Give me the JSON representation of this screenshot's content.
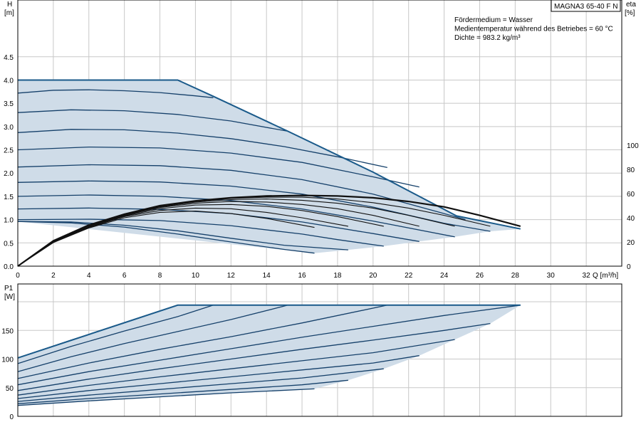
{
  "chart_data": [
    {
      "type": "line",
      "panel": "head",
      "model_label": "MAGNA3 65-40 F N",
      "info_lines": [
        "Fördermedium = Wasser",
        "Medientemperatur während des Betriebes = 60 °C",
        "Dichte = 983.2 kg/m³"
      ],
      "ylabel_lines": [
        "H",
        "[m]"
      ],
      "xlabel": "Q [m³/h]",
      "y2label_lines": [
        "eta",
        "[%]"
      ],
      "xlim": [
        0,
        34
      ],
      "ylim": [
        0,
        5.2
      ],
      "y2lim": [
        0,
        100
      ],
      "xticks": [
        0,
        2,
        4,
        6,
        8,
        10,
        12,
        14,
        16,
        18,
        20,
        22,
        24,
        26,
        28,
        30,
        32
      ],
      "yticks": [
        "0.0",
        "0.5",
        "1.0",
        "1.5",
        "2.0",
        "2.5",
        "3.0",
        "3.5",
        "4.0",
        "4.5"
      ],
      "y2ticks": [
        0,
        20,
        40,
        60,
        80,
        100
      ],
      "grid": true,
      "envelope": {
        "x": [
          0,
          9,
          11,
          15.2,
          20,
          24.7,
          28.3,
          26.6,
          24.6,
          22.6,
          20.6,
          18.6,
          16.7,
          0
        ],
        "y": [
          4.0,
          4.0,
          3.65,
          2.9,
          2.02,
          1.08,
          0.8,
          0.75,
          0.63,
          0.53,
          0.43,
          0.35,
          0.28,
          0.96
        ]
      },
      "head_series": [
        {
          "x": [
            0,
            1,
            3,
            5,
            7,
            9
          ],
          "y": [
            4.0,
            4.0,
            4.0,
            4.0,
            4.0,
            4.0
          ]
        },
        {
          "x": [
            0,
            2,
            4,
            6,
            8,
            10,
            11
          ],
          "y": [
            3.72,
            3.78,
            3.79,
            3.77,
            3.73,
            3.66,
            3.62
          ]
        },
        {
          "x": [
            0,
            3,
            6,
            9,
            12,
            15.2
          ],
          "y": [
            3.3,
            3.36,
            3.34,
            3.26,
            3.12,
            2.9
          ]
        },
        {
          "x": [
            0,
            3,
            6,
            9,
            12,
            15,
            18,
            20.8
          ],
          "y": [
            2.87,
            2.94,
            2.93,
            2.86,
            2.74,
            2.57,
            2.35,
            2.12
          ]
        },
        {
          "x": [
            0,
            4,
            8,
            12,
            16,
            20,
            22.6
          ],
          "y": [
            2.5,
            2.56,
            2.54,
            2.43,
            2.23,
            1.92,
            1.7
          ]
        },
        {
          "x": [
            0,
            4,
            8,
            12,
            16,
            20,
            24,
            25.2
          ],
          "y": [
            2.13,
            2.18,
            2.16,
            2.06,
            1.86,
            1.55,
            1.13,
            1.0
          ]
        },
        {
          "x": [
            0,
            4,
            8,
            12,
            16,
            20,
            24,
            26.6
          ],
          "y": [
            1.8,
            1.83,
            1.81,
            1.72,
            1.55,
            1.27,
            0.92,
            0.75
          ]
        },
        {
          "x": [
            0,
            4,
            8,
            12,
            16,
            20,
            24.6
          ],
          "y": [
            1.5,
            1.53,
            1.5,
            1.41,
            1.23,
            0.97,
            0.63
          ]
        },
        {
          "x": [
            0,
            4,
            8,
            12,
            16,
            20,
            22.6
          ],
          "y": [
            1.23,
            1.25,
            1.22,
            1.13,
            0.95,
            0.7,
            0.53
          ]
        },
        {
          "x": [
            0,
            4,
            8,
            12,
            16,
            18,
            20.6
          ],
          "y": [
            1.0,
            1.01,
            0.98,
            0.87,
            0.69,
            0.57,
            0.43
          ]
        },
        {
          "x": [
            0,
            3,
            6,
            9,
            12,
            15,
            18.6
          ],
          "y": [
            0.96,
            0.95,
            0.88,
            0.76,
            0.6,
            0.45,
            0.35
          ]
        },
        {
          "x": [
            0,
            3,
            6,
            9,
            12,
            15,
            16.7
          ],
          "y": [
            0.96,
            0.93,
            0.84,
            0.69,
            0.52,
            0.36,
            0.28
          ]
        }
      ],
      "efficiency_series": [
        {
          "x": [
            0,
            2,
            4,
            6,
            8,
            10,
            12,
            14,
            16,
            18,
            20,
            22,
            24,
            26,
            28.3
          ],
          "eta": [
            0,
            21,
            34,
            43,
            50,
            54,
            56.5,
            58,
            58.5,
            58,
            56.5,
            53.5,
            49,
            42,
            33
          ]
        },
        {
          "x": [
            0,
            2,
            4,
            6,
            8,
            10,
            12,
            14,
            16,
            18,
            20,
            22,
            24,
            26.6
          ],
          "eta": [
            0,
            21,
            34,
            43,
            49.5,
            53.5,
            56,
            57,
            57,
            55.5,
            52.5,
            48,
            42,
            33
          ]
        },
        {
          "x": [
            0,
            2,
            4,
            6,
            8,
            10,
            12,
            14,
            16,
            18,
            20,
            22,
            24.6
          ],
          "eta": [
            0,
            20.5,
            33.5,
            42.5,
            49,
            53,
            55,
            55.5,
            54.5,
            52,
            48,
            42,
            33
          ]
        },
        {
          "x": [
            0,
            2,
            4,
            6,
            8,
            10,
            12,
            14,
            16,
            18,
            20,
            22.6
          ],
          "eta": [
            0,
            20.5,
            33,
            42,
            48.5,
            52,
            53.5,
            53,
            51,
            47.5,
            42,
            33
          ]
        },
        {
          "x": [
            0,
            2,
            4,
            6,
            8,
            10,
            12,
            14,
            16,
            18,
            20.6
          ],
          "eta": [
            0,
            20,
            32.5,
            41.5,
            47.5,
            50.5,
            51,
            49.5,
            46,
            41,
            33
          ]
        },
        {
          "x": [
            0,
            2,
            4,
            6,
            8,
            10,
            12,
            14,
            16,
            18.6
          ],
          "eta": [
            0,
            20,
            32,
            41,
            46,
            48,
            47.5,
            44.5,
            40,
            33
          ]
        },
        {
          "x": [
            0,
            2,
            4,
            6,
            8,
            10,
            12,
            14,
            16.7
          ],
          "eta": [
            0,
            19.5,
            31.5,
            40,
            44.5,
            45.5,
            43.5,
            39.5,
            32
          ]
        }
      ]
    },
    {
      "type": "line",
      "panel": "power",
      "ylabel_lines": [
        "P1",
        "[W]"
      ],
      "xlim": [
        0,
        34
      ],
      "ylim": [
        0,
        200
      ],
      "yticks": [
        0,
        50,
        100,
        150
      ],
      "grid": true,
      "envelope": {
        "x": [
          0,
          9,
          28.3,
          28.3,
          26.6,
          24.6,
          22.6,
          20.6,
          18.6,
          16.7,
          0
        ],
        "y": [
          102,
          194,
          194,
          194,
          162,
          134,
          106,
          83,
          63,
          48,
          20
        ]
      },
      "power_series": [
        {
          "x": [
            0,
            3,
            6,
            9
          ],
          "y": [
            102,
            133,
            163,
            194
          ]
        },
        {
          "x": [
            0,
            3,
            6,
            9,
            11
          ],
          "y": [
            92,
            122,
            149,
            174,
            194
          ]
        },
        {
          "x": [
            0,
            3,
            6,
            9,
            12,
            15.2
          ],
          "y": [
            78,
            104,
            127,
            148,
            169,
            194
          ]
        },
        {
          "x": [
            0,
            4,
            8,
            12,
            16,
            20.8
          ],
          "y": [
            66,
            93,
            117,
            139,
            163,
            194
          ]
        },
        {
          "x": [
            0,
            4,
            8,
            12,
            16,
            20,
            24,
            28.3
          ],
          "y": [
            55,
            78,
            98,
            118,
            138,
            157,
            176,
            194
          ]
        },
        {
          "x": [
            0,
            4,
            8,
            12,
            16,
            20,
            24,
            26.6
          ],
          "y": [
            45,
            65,
            83,
            100,
            117,
            133,
            150,
            162
          ]
        },
        {
          "x": [
            0,
            4,
            8,
            12,
            16,
            20,
            24.6
          ],
          "y": [
            37,
            54,
            69,
            83,
            97,
            111,
            134
          ]
        },
        {
          "x": [
            0,
            4,
            8,
            12,
            16,
            20,
            22.6
          ],
          "y": [
            31,
            45,
            57,
            69,
            81,
            93,
            106
          ]
        },
        {
          "x": [
            0,
            4,
            8,
            12,
            16,
            20.6
          ],
          "y": [
            26,
            37,
            47,
            57,
            67,
            83
          ]
        },
        {
          "x": [
            0,
            4,
            8,
            12,
            16,
            18.6
          ],
          "y": [
            22,
            31,
            39,
            47,
            55,
            63
          ]
        },
        {
          "x": [
            0,
            4,
            8,
            12,
            16.7
          ],
          "y": [
            19,
            27,
            34,
            41,
            48
          ]
        }
      ]
    }
  ]
}
